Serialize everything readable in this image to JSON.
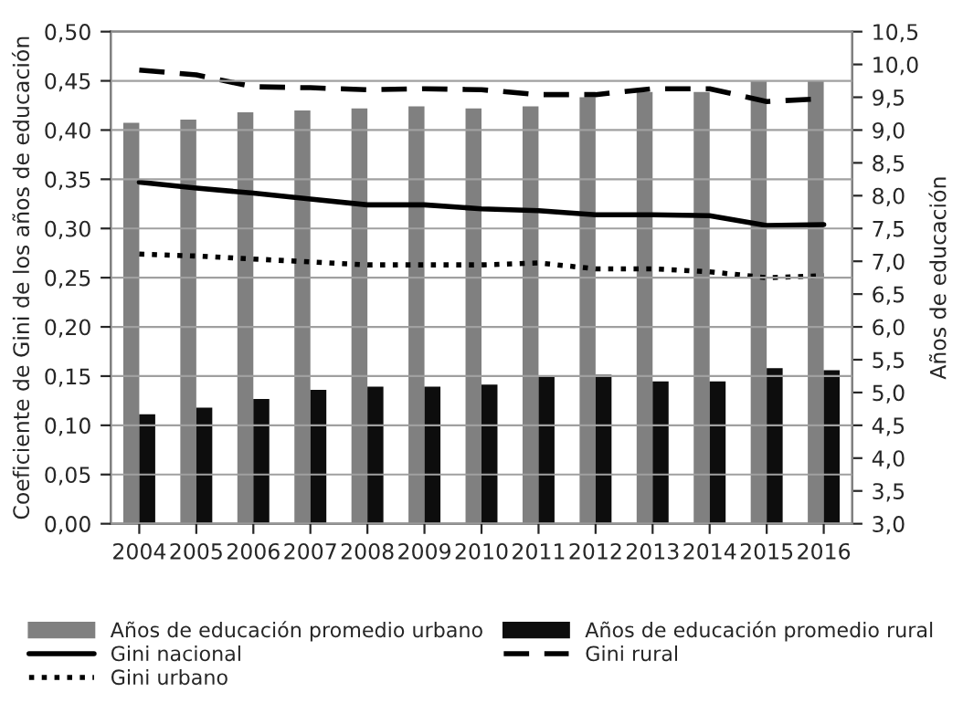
{
  "chart_data": {
    "type": "bar",
    "ylabel": "Coeficiente de Gini de los años de educación",
    "y2label": "Años de educación",
    "categories": [
      "2004",
      "2005",
      "2006",
      "2007",
      "2008",
      "2009",
      "2010",
      "2011",
      "2012",
      "2013",
      "2014",
      "2015",
      "2016"
    ],
    "series": [
      {
        "name": "Años de educación promedio urbano",
        "axis": "y2",
        "color": "#808080",
        "values": [
          9.11,
          9.16,
          9.27,
          9.3,
          9.33,
          9.36,
          9.33,
          9.36,
          9.5,
          9.58,
          9.58,
          9.75,
          9.75
        ]
      },
      {
        "name": "Años de educación promedio rural",
        "axis": "y2",
        "color": "#0d0d0d",
        "values": [
          4.67,
          4.77,
          4.9,
          5.04,
          5.09,
          5.09,
          5.12,
          5.24,
          5.27,
          5.17,
          5.17,
          5.37,
          5.34
        ]
      },
      {
        "name": "Gini nacional",
        "type": "line",
        "line_style": "solid",
        "color": "#000000",
        "values": [
          0.347,
          0.341,
          0.336,
          0.33,
          0.324,
          0.324,
          0.32,
          0.318,
          0.314,
          0.314,
          0.313,
          0.303,
          0.304
        ]
      },
      {
        "name": "Gini rural",
        "type": "line",
        "line_style": "dashed",
        "color": "#000000",
        "values": [
          0.461,
          0.456,
          0.444,
          0.443,
          0.441,
          0.442,
          0.441,
          0.436,
          0.436,
          0.442,
          0.442,
          0.429,
          0.432
        ]
      },
      {
        "name": "Gini urbano",
        "type": "line",
        "line_style": "dotted",
        "color": "#000000",
        "values": [
          0.274,
          0.272,
          0.269,
          0.266,
          0.263,
          0.263,
          0.263,
          0.265,
          0.259,
          0.259,
          0.256,
          0.25,
          0.252
        ]
      }
    ],
    "ylim": [
      0,
      0.5
    ],
    "yticks": [
      {
        "value": 0,
        "label": "0,00"
      },
      {
        "value": 0.05,
        "label": "0,05"
      },
      {
        "value": 0.1,
        "label": "0,10"
      },
      {
        "value": 0.15,
        "label": "0,15"
      },
      {
        "value": 0.2,
        "label": "0,20"
      },
      {
        "value": 0.25,
        "label": "0,25"
      },
      {
        "value": 0.3,
        "label": "0,30"
      },
      {
        "value": 0.35,
        "label": "0,35"
      },
      {
        "value": 0.4,
        "label": "0,40"
      },
      {
        "value": 0.45,
        "label": "0,45"
      },
      {
        "value": 0.5,
        "label": "0,50"
      }
    ],
    "y2lim": [
      3,
      10.5
    ],
    "y2ticks": [
      {
        "value": 3,
        "label": "3,0"
      },
      {
        "value": 3.5,
        "label": "3,5"
      },
      {
        "value": 4,
        "label": "4,0"
      },
      {
        "value": 4.5,
        "label": "4,5"
      },
      {
        "value": 5,
        "label": "5,0"
      },
      {
        "value": 5.5,
        "label": "5,5"
      },
      {
        "value": 6,
        "label": "6,0"
      },
      {
        "value": 6.5,
        "label": "6,5"
      },
      {
        "value": 7,
        "label": "7,0"
      },
      {
        "value": 7.5,
        "label": "7,5"
      },
      {
        "value": 8,
        "label": "8,0"
      },
      {
        "value": 8.5,
        "label": "8,5"
      },
      {
        "value": 9,
        "label": "9,0"
      },
      {
        "value": 9.5,
        "label": "9,5"
      },
      {
        "value": 10,
        "label": "10,0"
      },
      {
        "value": 10.5,
        "label": "10,5"
      }
    ],
    "grid": "y",
    "legend": "bottom"
  }
}
